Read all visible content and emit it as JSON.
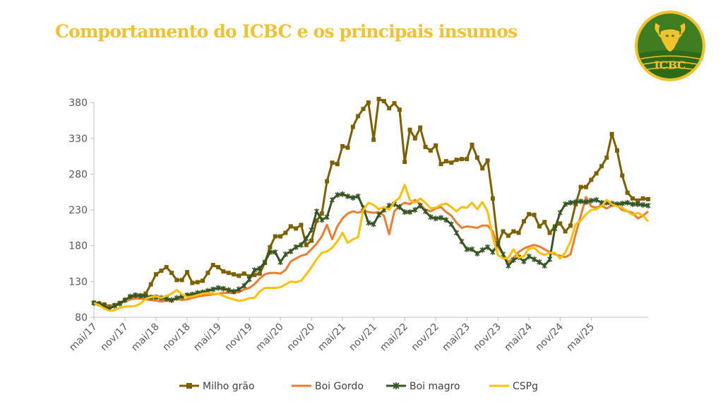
{
  "header": {
    "title": "Comportamento do ICBC e os principais insumos",
    "logo_text": "ICBC"
  },
  "colors": {
    "title": "#F2C12E",
    "milho": "#7F6000",
    "boi_gordo": "#ED7D31",
    "boi_magro": "#375623",
    "cspg": "#FFC000",
    "logo_bg": "#3F7D20",
    "logo_ring": "#F2C12E"
  },
  "chart_data": {
    "type": "line",
    "title": "",
    "xlabel": "",
    "ylabel": "",
    "ylim": [
      80,
      390
    ],
    "yticks": [
      80,
      130,
      180,
      230,
      280,
      330,
      380
    ],
    "x_tick_labels": [
      "mai/17",
      "nov/17",
      "mai/18",
      "nov/18",
      "mai/19",
      "nov/19",
      "mai/20",
      "nov/20",
      "mai/21",
      "nov/21",
      "mai/22",
      "nov/22",
      "mai/23",
      "nov/23",
      "mai/24",
      "nov/24",
      "mai/25"
    ],
    "x_start": "mai/17",
    "legend_position": "bottom",
    "series": [
      {
        "name": "Milho grão",
        "key": "milho",
        "marker": "square",
        "values": [
          100,
          99,
          98,
          95,
          97,
          100,
          104,
          108,
          110,
          110,
          113,
          126,
          140,
          145,
          150,
          142,
          132,
          132,
          143,
          128,
          129,
          131,
          142,
          153,
          150,
          144,
          142,
          140,
          138,
          141,
          137,
          139,
          141,
          156,
          178,
          193,
          193,
          198,
          207,
          204,
          209,
          181,
          187,
          215,
          225,
          270,
          296,
          294,
          319,
          317,
          346,
          361,
          371,
          380,
          328,
          385,
          382,
          372,
          379,
          370,
          297,
          342,
          330,
          345,
          318,
          313,
          320,
          294,
          298,
          296,
          300,
          301,
          301,
          321,
          303,
          288,
          299,
          246,
          183,
          200,
          194,
          200,
          198,
          214,
          224,
          223,
          207,
          213,
          198,
          207,
          211,
          200,
          208,
          238,
          262,
          262,
          272,
          281,
          291,
          303,
          336,
          313,
          278,
          254,
          246,
          243,
          246,
          245
        ]
      },
      {
        "name": "Boi Gordo",
        "key": "boi_gordo",
        "marker": "none",
        "values": [
          100,
          99,
          97,
          94,
          97,
          99,
          102,
          105,
          106,
          106,
          105,
          104,
          103,
          102,
          103,
          103,
          106,
          104,
          105,
          107,
          109,
          110,
          111,
          112,
          113,
          114,
          114,
          114,
          115,
          119,
          121,
          126,
          134,
          140,
          142,
          142,
          141,
          146,
          158,
          162,
          166,
          168,
          175,
          183,
          193,
          209,
          189,
          207,
          218,
          225,
          228,
          226,
          229,
          227,
          226,
          227,
          222,
          196,
          228,
          236,
          240,
          238,
          244,
          238,
          230,
          228,
          232,
          234,
          227,
          222,
          212,
          205,
          207,
          206,
          205,
          208,
          208,
          200,
          178,
          168,
          157,
          163,
          171,
          176,
          179,
          181,
          179,
          175,
          171,
          168,
          166,
          164,
          168,
          196,
          222,
          248,
          235,
          233,
          236,
          232,
          236,
          236,
          230,
          228,
          226,
          218,
          222,
          228
        ]
      },
      {
        "name": "Boi magro",
        "key": "boi_magro",
        "marker": "cross",
        "values": [
          100,
          99,
          96,
          92,
          96,
          99,
          104,
          109,
          111,
          110,
          109,
          108,
          108,
          107,
          106,
          104,
          107,
          109,
          111,
          112,
          114,
          115,
          117,
          119,
          121,
          120,
          118,
          116,
          119,
          124,
          133,
          146,
          148,
          157,
          171,
          171,
          157,
          168,
          172,
          178,
          181,
          190,
          202,
          228,
          216,
          220,
          244,
          251,
          252,
          249,
          247,
          249,
          233,
          212,
          210,
          223,
          230,
          236,
          238,
          234,
          227,
          227,
          230,
          236,
          228,
          220,
          218,
          219,
          216,
          210,
          198,
          186,
          175,
          175,
          169,
          174,
          178,
          171,
          183,
          168,
          152,
          160,
          164,
          158,
          165,
          161,
          157,
          152,
          161,
          204,
          226,
          238,
          240,
          241,
          242,
          241,
          243,
          244,
          240,
          240,
          239,
          238,
          239,
          240,
          238,
          238,
          237,
          236
        ]
      },
      {
        "name": "CSPg",
        "key": "cspg",
        "marker": "none",
        "values": [
          100,
          97,
          92,
          89,
          90,
          93,
          95,
          95,
          96,
          99,
          106,
          108,
          109,
          107,
          110,
          113,
          118,
          112,
          108,
          109,
          111,
          113,
          114,
          113,
          113,
          110,
          107,
          105,
          103,
          104,
          107,
          107,
          116,
          121,
          121,
          121,
          122,
          126,
          130,
          129,
          131,
          140,
          150,
          161,
          170,
          172,
          177,
          186,
          198,
          184,
          189,
          192,
          230,
          240,
          237,
          231,
          234,
          230,
          241,
          247,
          265,
          244,
          240,
          246,
          240,
          232,
          233,
          237,
          239,
          234,
          228,
          234,
          233,
          240,
          231,
          241,
          228,
          192,
          167,
          162,
          163,
          175,
          163,
          165,
          176,
          177,
          170,
          167,
          170,
          170,
          162,
          170,
          186,
          210,
          215,
          224,
          230,
          231,
          235,
          244,
          238,
          235,
          233,
          228,
          223,
          226,
          222,
          214
        ]
      }
    ]
  }
}
